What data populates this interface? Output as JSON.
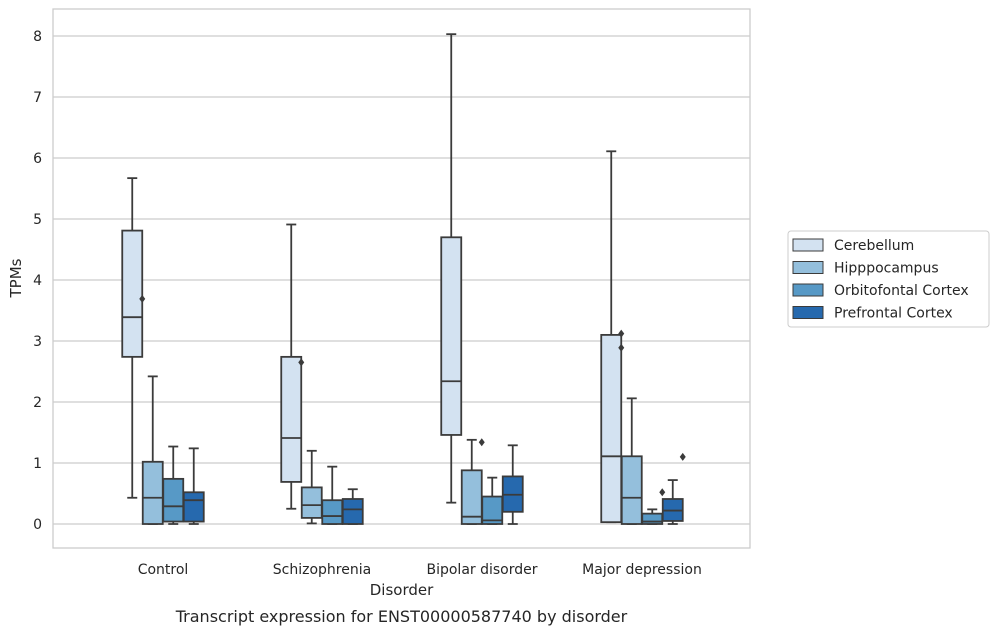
{
  "chart_data": {
    "type": "boxplot",
    "title": "",
    "caption": "Transcript expression for ENST00000587740 by disorder",
    "xlabel": "Disorder",
    "ylabel": "TPMs",
    "ylim": [
      -0.4,
      8.45
    ],
    "yticks": [
      0,
      1,
      2,
      3,
      4,
      5,
      6,
      7,
      8
    ],
    "ytick_labels": [
      "0",
      "1",
      "2",
      "3",
      "4",
      "5",
      "6",
      "7",
      "8"
    ],
    "grid": "horizontal",
    "legend_position": "right",
    "categories": [
      "Control",
      "Schizophrenia",
      "Bipolar disorder",
      "Major depression"
    ],
    "series": [
      {
        "name": "Cerebellum",
        "color": "#d3e2f1",
        "boxes": [
          {
            "whislo": 0.43,
            "q1": 2.74,
            "med": 3.39,
            "q3": 4.81,
            "whishi": 5.67,
            "fliers": [
              3.69
            ]
          },
          {
            "whislo": 0.25,
            "q1": 0.69,
            "med": 1.41,
            "q3": 2.74,
            "whishi": 4.91,
            "fliers": [
              2.65
            ]
          },
          {
            "whislo": 0.35,
            "q1": 1.46,
            "med": 2.34,
            "q3": 4.7,
            "whishi": 8.03,
            "fliers": []
          },
          {
            "whislo": 0.03,
            "q1": 0.03,
            "med": 1.11,
            "q3": 3.1,
            "whishi": 6.11,
            "fliers": [
              3.12,
              2.89
            ]
          }
        ]
      },
      {
        "name": "Hipppocampus",
        "color": "#94bfdc",
        "boxes": [
          {
            "whislo": 0.0,
            "q1": 0.0,
            "med": 0.43,
            "q3": 1.02,
            "whishi": 2.42,
            "fliers": []
          },
          {
            "whislo": 0.01,
            "q1": 0.1,
            "med": 0.31,
            "q3": 0.6,
            "whishi": 1.2,
            "fliers": []
          },
          {
            "whislo": 0.0,
            "q1": 0.0,
            "med": 0.12,
            "q3": 0.88,
            "whishi": 1.38,
            "fliers": [
              1.34
            ]
          },
          {
            "whislo": 0.0,
            "q1": 0.0,
            "med": 0.43,
            "q3": 1.11,
            "whishi": 2.06,
            "fliers": []
          }
        ]
      },
      {
        "name": "Orbitofontal Cortex",
        "color": "#5799c6",
        "boxes": [
          {
            "whislo": 0.0,
            "q1": 0.04,
            "med": 0.29,
            "q3": 0.74,
            "whishi": 1.27,
            "fliers": []
          },
          {
            "whislo": 0.0,
            "q1": 0.0,
            "med": 0.13,
            "q3": 0.39,
            "whishi": 0.94,
            "fliers": []
          },
          {
            "whislo": 0.0,
            "q1": 0.0,
            "med": 0.06,
            "q3": 0.45,
            "whishi": 0.76,
            "fliers": []
          },
          {
            "whislo": 0.0,
            "q1": 0.0,
            "med": 0.04,
            "q3": 0.17,
            "whishi": 0.24,
            "fliers": [
              0.52
            ]
          }
        ]
      },
      {
        "name": "Prefrontal Cortex",
        "color": "#2669ae",
        "boxes": [
          {
            "whislo": 0.0,
            "q1": 0.04,
            "med": 0.39,
            "q3": 0.52,
            "whishi": 1.24,
            "fliers": []
          },
          {
            "whislo": 0.0,
            "q1": 0.0,
            "med": 0.24,
            "q3": 0.41,
            "whishi": 0.57,
            "fliers": []
          },
          {
            "whislo": 0.0,
            "q1": 0.2,
            "med": 0.48,
            "q3": 0.78,
            "whishi": 1.29,
            "fliers": []
          },
          {
            "whislo": 0.0,
            "q1": 0.05,
            "med": 0.22,
            "q3": 0.41,
            "whishi": 0.72,
            "fliers": [
              1.1
            ]
          }
        ]
      }
    ]
  }
}
